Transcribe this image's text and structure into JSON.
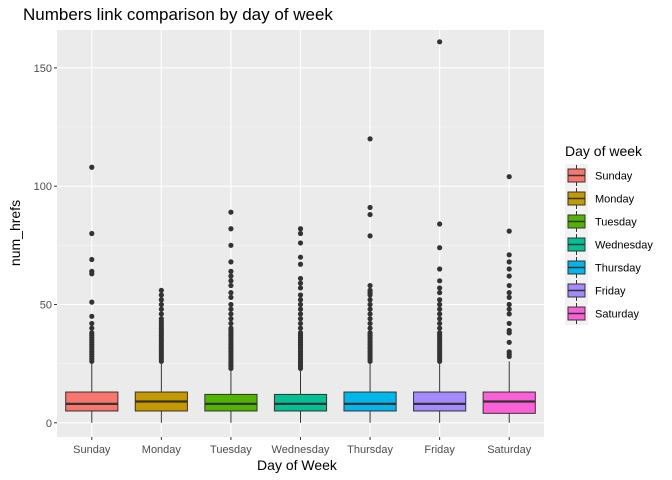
{
  "chart_data": {
    "type": "box",
    "title": "Numbers link comparison by day of week",
    "xlabel": "Day of Week",
    "ylabel": "num_hrefs",
    "ylim": [
      -6,
      166
    ],
    "yticks": [
      0,
      50,
      100,
      150
    ],
    "grid": true,
    "legend": {
      "title": "Day of week",
      "position": "right"
    },
    "categories": [
      "Sunday",
      "Monday",
      "Tuesday",
      "Wednesday",
      "Thursday",
      "Friday",
      "Saturday"
    ],
    "colors": [
      "#F8766D",
      "#C49A00",
      "#53B400",
      "#00C094",
      "#00B6EB",
      "#A58AFF",
      "#FB61D7"
    ],
    "boxes": [
      {
        "name": "Sunday",
        "min": 0,
        "q1": 5,
        "median": 8,
        "q3": 13,
        "max": 25,
        "outliers": [
          108,
          80,
          69,
          64,
          63,
          51,
          45,
          42,
          40,
          38,
          37,
          36,
          35,
          34,
          33,
          32,
          31,
          30,
          29,
          28,
          27,
          26
        ]
      },
      {
        "name": "Monday",
        "min": 0,
        "q1": 5,
        "median": 9,
        "q3": 13,
        "max": 25,
        "outliers": [
          56,
          54,
          52,
          50,
          48,
          46,
          44,
          43,
          42,
          41,
          40,
          39,
          38,
          37,
          36,
          35,
          34,
          33,
          32,
          31,
          30,
          29,
          28,
          27,
          26
        ]
      },
      {
        "name": "Tuesday",
        "min": 0,
        "q1": 5,
        "median": 8,
        "q3": 12,
        "max": 22,
        "outliers": [
          89,
          82,
          75,
          68,
          64,
          62,
          60,
          58,
          55,
          53,
          50,
          48,
          46,
          44,
          42,
          40,
          39,
          38,
          37,
          36,
          35,
          34,
          33,
          32,
          31,
          30,
          29,
          28,
          27,
          26,
          25,
          24,
          23
        ]
      },
      {
        "name": "Wednesday",
        "min": 0,
        "q1": 5,
        "median": 8,
        "q3": 12,
        "max": 22,
        "outliers": [
          82,
          80,
          76,
          70,
          67,
          61,
          59,
          57,
          54,
          52,
          50,
          48,
          46,
          44,
          42,
          40,
          38,
          37,
          36,
          35,
          34,
          33,
          32,
          31,
          30,
          29,
          28,
          27,
          26,
          25,
          24,
          23
        ]
      },
      {
        "name": "Thursday",
        "min": 0,
        "q1": 5,
        "median": 8,
        "q3": 13,
        "max": 25,
        "outliers": [
          120,
          91,
          88,
          79,
          58,
          56,
          55,
          54,
          52,
          50,
          48,
          46,
          44,
          42,
          40,
          38,
          37,
          36,
          35,
          34,
          33,
          32,
          31,
          30,
          29,
          28,
          27,
          26
        ]
      },
      {
        "name": "Friday",
        "min": 0,
        "q1": 5,
        "median": 8,
        "q3": 13,
        "max": 25,
        "outliers": [
          161,
          84,
          74,
          65,
          60,
          57,
          55,
          52,
          50,
          48,
          46,
          44,
          42,
          40,
          38,
          37,
          36,
          35,
          34,
          33,
          32,
          31,
          30,
          29,
          28,
          27,
          26
        ]
      },
      {
        "name": "Saturday",
        "min": 0,
        "q1": 4,
        "median": 9,
        "q3": 13,
        "max": 26,
        "outliers": [
          104,
          81,
          71,
          68,
          65,
          62,
          58,
          55,
          53,
          50,
          48,
          46,
          42,
          39,
          38,
          34,
          30,
          29,
          28
        ]
      }
    ]
  }
}
